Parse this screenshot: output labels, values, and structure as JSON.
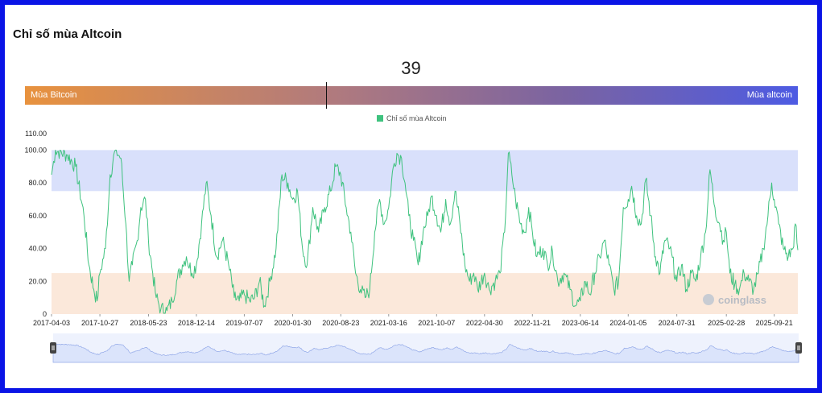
{
  "title": "Chỉ số mùa Altcoin",
  "current_value": "39",
  "gauge": {
    "left_label": "Mùa Bitcoin",
    "right_label": "Mùa altcoin",
    "position": 0.39
  },
  "watermark": "coinglass",
  "colors": {
    "line": "#3ec27e",
    "altseason_band": "#d9e0fb",
    "bitcoin_band": "#fbe8da",
    "navigator_fill": "#dbe4fb",
    "navigator_line": "#93a9e8"
  },
  "chart_data": {
    "type": "line",
    "title": "",
    "legend": [
      "Chỉ số mùa Altcoin"
    ],
    "ylim": [
      0,
      110
    ],
    "yticks": [
      "0",
      "20.00",
      "40.00",
      "60.00",
      "80.00",
      "100.00",
      "110.00"
    ],
    "xticks": [
      "2017-04-03",
      "2017-10-27",
      "2018-05-23",
      "2018-12-14",
      "2019-07-07",
      "2020-01-30",
      "2020-08-23",
      "2021-03-16",
      "2021-10-07",
      "2022-04-30",
      "2022-11-21",
      "2023-06-14",
      "2024-01-05",
      "2024-07-31",
      "2025-02-28",
      "2025-09-21"
    ],
    "bands": [
      {
        "name": "altcoin-season",
        "from": 75,
        "to": 100
      },
      {
        "name": "bitcoin-season",
        "from": 0,
        "to": 25
      }
    ],
    "x_range": [
      "2017-04-03",
      "2025-12-31"
    ],
    "series": [
      {
        "name": "Chỉ số mùa Altcoin",
        "points": [
          [
            "2017-04-03",
            85
          ],
          [
            "2017-04-20",
            100
          ],
          [
            "2017-06-10",
            97
          ],
          [
            "2017-07-15",
            90
          ],
          [
            "2017-08-20",
            60
          ],
          [
            "2017-09-10",
            30
          ],
          [
            "2017-10-01",
            15
          ],
          [
            "2017-10-15",
            8
          ],
          [
            "2017-10-27",
            25
          ],
          [
            "2017-11-20",
            40
          ],
          [
            "2017-12-10",
            85
          ],
          [
            "2018-01-01",
            100
          ],
          [
            "2018-01-25",
            95
          ],
          [
            "2018-02-15",
            55
          ],
          [
            "2018-03-01",
            20
          ],
          [
            "2018-03-15",
            30
          ],
          [
            "2018-04-05",
            45
          ],
          [
            "2018-04-20",
            65
          ],
          [
            "2018-05-10",
            70
          ],
          [
            "2018-05-23",
            45
          ],
          [
            "2018-06-10",
            25
          ],
          [
            "2018-06-25",
            10
          ],
          [
            "2018-07-15",
            3
          ],
          [
            "2018-08-10",
            2
          ],
          [
            "2018-09-01",
            8
          ],
          [
            "2018-09-20",
            20
          ],
          [
            "2018-10-15",
            30
          ],
          [
            "2018-11-01",
            35
          ],
          [
            "2018-11-25",
            25
          ],
          [
            "2018-12-14",
            30
          ],
          [
            "2019-01-05",
            55
          ],
          [
            "2019-01-25",
            80
          ],
          [
            "2019-02-15",
            60
          ],
          [
            "2019-03-10",
            35
          ],
          [
            "2019-04-05",
            45
          ],
          [
            "2019-05-01",
            30
          ],
          [
            "2019-05-25",
            10
          ],
          [
            "2019-06-15",
            8
          ],
          [
            "2019-07-07",
            12
          ],
          [
            "2019-07-30",
            8
          ],
          [
            "2019-08-20",
            10
          ],
          [
            "2019-09-10",
            20
          ],
          [
            "2019-10-01",
            5
          ],
          [
            "2019-10-25",
            20
          ],
          [
            "2019-11-20",
            40
          ],
          [
            "2019-12-15",
            85
          ],
          [
            "2020-01-10",
            80
          ],
          [
            "2020-01-30",
            70
          ],
          [
            "2020-02-20",
            75
          ],
          [
            "2020-03-12",
            40
          ],
          [
            "2020-04-01",
            30
          ],
          [
            "2020-04-25",
            65
          ],
          [
            "2020-05-20",
            50
          ],
          [
            "2020-06-15",
            65
          ],
          [
            "2020-07-10",
            75
          ],
          [
            "2020-08-01",
            90
          ],
          [
            "2020-08-23",
            85
          ],
          [
            "2020-09-15",
            65
          ],
          [
            "2020-10-05",
            50
          ],
          [
            "2020-10-25",
            25
          ],
          [
            "2020-11-15",
            15
          ],
          [
            "2020-12-05",
            10
          ],
          [
            "2020-12-25",
            15
          ],
          [
            "2021-01-15",
            50
          ],
          [
            "2021-02-05",
            70
          ],
          [
            "2021-02-25",
            55
          ],
          [
            "2021-03-16",
            65
          ],
          [
            "2021-04-05",
            90
          ],
          [
            "2021-04-20",
            98
          ],
          [
            "2021-05-10",
            95
          ],
          [
            "2021-05-25",
            80
          ],
          [
            "2021-06-10",
            60
          ],
          [
            "2021-06-30",
            45
          ],
          [
            "2021-07-20",
            30
          ],
          [
            "2021-08-10",
            50
          ],
          [
            "2021-08-30",
            60
          ],
          [
            "2021-09-15",
            72
          ],
          [
            "2021-10-07",
            60
          ],
          [
            "2021-10-25",
            50
          ],
          [
            "2021-11-15",
            70
          ],
          [
            "2021-12-05",
            55
          ],
          [
            "2021-12-25",
            75
          ],
          [
            "2022-01-15",
            55
          ],
          [
            "2022-02-05",
            30
          ],
          [
            "2022-02-25",
            20
          ],
          [
            "2022-03-15",
            25
          ],
          [
            "2022-04-01",
            15
          ],
          [
            "2022-04-30",
            25
          ],
          [
            "2022-05-20",
            15
          ],
          [
            "2022-06-15",
            20
          ],
          [
            "2022-07-05",
            25
          ],
          [
            "2022-07-25",
            50
          ],
          [
            "2022-08-10",
            98
          ],
          [
            "2022-08-25",
            85
          ],
          [
            "2022-09-10",
            70
          ],
          [
            "2022-10-01",
            55
          ],
          [
            "2022-10-20",
            50
          ],
          [
            "2022-11-05",
            65
          ],
          [
            "2022-11-21",
            50
          ],
          [
            "2022-12-10",
            35
          ],
          [
            "2023-01-05",
            40
          ],
          [
            "2023-01-25",
            30
          ],
          [
            "2023-02-15",
            38
          ],
          [
            "2023-03-10",
            20
          ],
          [
            "2023-04-05",
            25
          ],
          [
            "2023-05-01",
            15
          ],
          [
            "2023-05-25",
            5
          ],
          [
            "2023-06-14",
            8
          ],
          [
            "2023-07-05",
            20
          ],
          [
            "2023-07-25",
            12
          ],
          [
            "2023-08-15",
            25
          ],
          [
            "2023-09-05",
            35
          ],
          [
            "2023-09-25",
            45
          ],
          [
            "2023-10-15",
            30
          ],
          [
            "2023-11-05",
            15
          ],
          [
            "2023-11-25",
            20
          ],
          [
            "2023-12-15",
            65
          ],
          [
            "2024-01-05",
            70
          ],
          [
            "2024-01-20",
            78
          ],
          [
            "2024-02-10",
            60
          ],
          [
            "2024-03-01",
            55
          ],
          [
            "2024-03-20",
            82
          ],
          [
            "2024-04-10",
            60
          ],
          [
            "2024-05-01",
            35
          ],
          [
            "2024-05-20",
            25
          ],
          [
            "2024-06-10",
            45
          ],
          [
            "2024-07-01",
            40
          ],
          [
            "2024-07-31",
            20
          ],
          [
            "2024-08-20",
            30
          ],
          [
            "2024-09-10",
            15
          ],
          [
            "2024-10-01",
            25
          ],
          [
            "2024-10-20",
            20
          ],
          [
            "2024-11-10",
            35
          ],
          [
            "2024-12-01",
            50
          ],
          [
            "2024-12-20",
            88
          ],
          [
            "2025-01-10",
            65
          ],
          [
            "2025-01-30",
            55
          ],
          [
            "2025-02-15",
            45
          ],
          [
            "2025-02-28",
            50
          ],
          [
            "2025-03-15",
            25
          ],
          [
            "2025-04-05",
            18
          ],
          [
            "2025-04-25",
            15
          ],
          [
            "2025-05-15",
            25
          ],
          [
            "2025-06-05",
            20
          ],
          [
            "2025-06-25",
            15
          ],
          [
            "2025-07-15",
            25
          ],
          [
            "2025-08-05",
            40
          ],
          [
            "2025-08-25",
            60
          ],
          [
            "2025-09-10",
            80
          ],
          [
            "2025-09-21",
            70
          ],
          [
            "2025-10-10",
            55
          ],
          [
            "2025-10-30",
            40
          ],
          [
            "2025-11-20",
            35
          ],
          [
            "2025-12-10",
            40
          ],
          [
            "2025-12-20",
            55
          ],
          [
            "2025-12-31",
            39
          ]
        ]
      }
    ]
  }
}
